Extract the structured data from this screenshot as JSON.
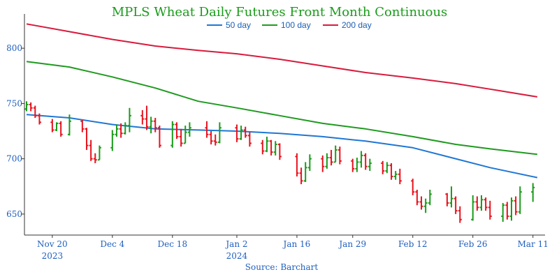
{
  "chart_data": {
    "type": "ohlc",
    "title": "MPLS Wheat Daily Futures Front Month Continuous",
    "source": "Source: Barchart",
    "ylim": [
      631,
      831
    ],
    "y_ticks": [
      650,
      700,
      750,
      800
    ],
    "x_ticks": [
      {
        "date": "2023-11-20",
        "label": "Nov 20",
        "sub": "2023"
      },
      {
        "date": "2023-12-04",
        "label": "Dec 4",
        "sub": ""
      },
      {
        "date": "2023-12-18",
        "label": "Dec 18",
        "sub": ""
      },
      {
        "date": "2024-01-02",
        "label": "Jan 2",
        "sub": "2024"
      },
      {
        "date": "2024-01-16",
        "label": "Jan 16",
        "sub": ""
      },
      {
        "date": "2024-01-29",
        "label": "Jan 29",
        "sub": ""
      },
      {
        "date": "2024-02-12",
        "label": "Feb 12",
        "sub": ""
      },
      {
        "date": "2024-02-26",
        "label": "Feb 26",
        "sub": ""
      },
      {
        "date": "2024-03-11",
        "label": "Mar 11",
        "sub": ""
      }
    ],
    "x_range": [
      "2023-11-14",
      "2024-03-13"
    ],
    "colors": {
      "up": "#1a9b1a",
      "down": "#e8131f",
      "axis": "#333333",
      "tick_text": "#1f5fbf"
    },
    "legend": {
      "position": "top-center"
    },
    "series": [
      {
        "name": "50 day",
        "color": "#1f77d4",
        "points": [
          [
            "2023-11-14",
            740
          ],
          [
            "2023-11-24",
            737
          ],
          [
            "2023-12-04",
            731
          ],
          [
            "2023-12-14",
            727
          ],
          [
            "2023-12-24",
            726
          ],
          [
            "2024-01-02",
            725
          ],
          [
            "2024-01-12",
            723
          ],
          [
            "2024-01-22",
            720
          ],
          [
            "2024-02-01",
            716
          ],
          [
            "2024-02-12",
            710
          ],
          [
            "2024-02-22",
            700
          ],
          [
            "2024-03-01",
            692
          ],
          [
            "2024-03-12",
            683
          ]
        ]
      },
      {
        "name": "100 day",
        "color": "#1f9a1f",
        "points": [
          [
            "2023-11-14",
            788
          ],
          [
            "2023-11-24",
            783
          ],
          [
            "2023-12-04",
            774
          ],
          [
            "2023-12-14",
            764
          ],
          [
            "2023-12-24",
            752
          ],
          [
            "2024-01-02",
            746
          ],
          [
            "2024-01-12",
            739
          ],
          [
            "2024-01-22",
            732
          ],
          [
            "2024-02-01",
            727
          ],
          [
            "2024-02-12",
            720
          ],
          [
            "2024-02-22",
            713
          ],
          [
            "2024-03-01",
            709
          ],
          [
            "2024-03-12",
            704
          ]
        ]
      },
      {
        "name": "200 day",
        "color": "#d81b3c",
        "points": [
          [
            "2023-11-14",
            822
          ],
          [
            "2023-11-24",
            815
          ],
          [
            "2023-12-04",
            808
          ],
          [
            "2023-12-14",
            802
          ],
          [
            "2023-12-24",
            798
          ],
          [
            "2024-01-02",
            795
          ],
          [
            "2024-01-12",
            790
          ],
          [
            "2024-01-22",
            784
          ],
          [
            "2024-02-01",
            778
          ],
          [
            "2024-02-12",
            773
          ],
          [
            "2024-02-22",
            768
          ],
          [
            "2024-03-01",
            763
          ],
          [
            "2024-03-12",
            756
          ]
        ]
      }
    ],
    "bars": [
      [
        "2023-11-14",
        745,
        752,
        743,
        749
      ],
      [
        "2023-11-15",
        749,
        751,
        743,
        746
      ],
      [
        "2023-11-16",
        746,
        748,
        737,
        739
      ],
      [
        "2023-11-17",
        739,
        741,
        731,
        733
      ],
      [
        "2023-11-20",
        733,
        736,
        724,
        726
      ],
      [
        "2023-11-21",
        726,
        733,
        725,
        732
      ],
      [
        "2023-11-22",
        732,
        734,
        720,
        722
      ],
      [
        "2023-11-24",
        722,
        740,
        721,
        734
      ],
      [
        "2023-11-27",
        734,
        735,
        724,
        727
      ],
      [
        "2023-11-28",
        727,
        728,
        708,
        712
      ],
      [
        "2023-11-29",
        712,
        717,
        698,
        700
      ],
      [
        "2023-11-30",
        700,
        705,
        696,
        699
      ],
      [
        "2023-12-01",
        699,
        712,
        699,
        710
      ],
      [
        "2023-12-04",
        710,
        726,
        707,
        722
      ],
      [
        "2023-12-05",
        722,
        731,
        720,
        727
      ],
      [
        "2023-12-06",
        727,
        732,
        719,
        723
      ],
      [
        "2023-12-07",
        723,
        733,
        722,
        730
      ],
      [
        "2023-12-08",
        730,
        746,
        724,
        739
      ],
      [
        "2023-12-11",
        739,
        744,
        731,
        736
      ],
      [
        "2023-12-12",
        736,
        748,
        726,
        729
      ],
      [
        "2023-12-13",
        729,
        738,
        723,
        734
      ],
      [
        "2023-12-14",
        734,
        737,
        724,
        728
      ],
      [
        "2023-12-15",
        728,
        730,
        710,
        712
      ],
      [
        "2023-12-18",
        712,
        734,
        710,
        731
      ],
      [
        "2023-12-19",
        731,
        733,
        718,
        720
      ],
      [
        "2023-12-20",
        720,
        727,
        711,
        714
      ],
      [
        "2023-12-21",
        714,
        730,
        714,
        724
      ],
      [
        "2023-12-22",
        724,
        733,
        720,
        728
      ],
      [
        "2023-12-26",
        728,
        734,
        719,
        722
      ],
      [
        "2023-12-27",
        722,
        725,
        713,
        716
      ],
      [
        "2023-12-28",
        716,
        722,
        712,
        715
      ],
      [
        "2023-12-29",
        715,
        733,
        714,
        728
      ],
      [
        "2024-01-02",
        728,
        731,
        715,
        718
      ],
      [
        "2024-01-03",
        718,
        730,
        717,
        726
      ],
      [
        "2024-01-04",
        726,
        729,
        719,
        721
      ],
      [
        "2024-01-05",
        721,
        724,
        711,
        714
      ],
      [
        "2024-01-08",
        714,
        717,
        704,
        707
      ],
      [
        "2024-01-09",
        707,
        720,
        706,
        716
      ],
      [
        "2024-01-10",
        716,
        717,
        703,
        706
      ],
      [
        "2024-01-11",
        706,
        716,
        703,
        713
      ],
      [
        "2024-01-12",
        713,
        714,
        699,
        702
      ],
      [
        "2024-01-16",
        702,
        705,
        684,
        687
      ],
      [
        "2024-01-17",
        687,
        692,
        677,
        680
      ],
      [
        "2024-01-18",
        680,
        697,
        679,
        692
      ],
      [
        "2024-01-19",
        692,
        704,
        689,
        700
      ],
      [
        "2024-01-22",
        700,
        703,
        688,
        693
      ],
      [
        "2024-01-23",
        693,
        705,
        691,
        701
      ],
      [
        "2024-01-24",
        701,
        708,
        694,
        697
      ],
      [
        "2024-01-25",
        697,
        712,
        697,
        708
      ],
      [
        "2024-01-26",
        708,
        711,
        695,
        698
      ],
      [
        "2024-01-29",
        698,
        700,
        688,
        691
      ],
      [
        "2024-01-30",
        691,
        701,
        688,
        697
      ],
      [
        "2024-01-31",
        697,
        707,
        692,
        703
      ],
      [
        "2024-02-01",
        703,
        705,
        690,
        693
      ],
      [
        "2024-02-02",
        693,
        700,
        689,
        696
      ],
      [
        "2024-02-05",
        696,
        698,
        686,
        689
      ],
      [
        "2024-02-06",
        689,
        697,
        687,
        694
      ],
      [
        "2024-02-07",
        694,
        696,
        681,
        684
      ],
      [
        "2024-02-08",
        684,
        689,
        681,
        686
      ],
      [
        "2024-02-09",
        686,
        691,
        677,
        680
      ],
      [
        "2024-02-12",
        680,
        682,
        667,
        670
      ],
      [
        "2024-02-13",
        670,
        672,
        658,
        661
      ],
      [
        "2024-02-14",
        661,
        666,
        654,
        657
      ],
      [
        "2024-02-15",
        657,
        664,
        651,
        660
      ],
      [
        "2024-02-16",
        660,
        672,
        658,
        668
      ],
      [
        "2024-02-20",
        668,
        669,
        657,
        660
      ],
      [
        "2024-02-21",
        660,
        675,
        656,
        664
      ],
      [
        "2024-02-22",
        664,
        666,
        650,
        653
      ],
      [
        "2024-02-23",
        653,
        657,
        642,
        645
      ],
      [
        "2024-02-26",
        645,
        667,
        644,
        661
      ],
      [
        "2024-02-27",
        661,
        666,
        653,
        656
      ],
      [
        "2024-02-28",
        656,
        667,
        653,
        663
      ],
      [
        "2024-02-29",
        663,
        665,
        653,
        656
      ],
      [
        "2024-03-01",
        656,
        662,
        645,
        648
      ],
      [
        "2024-03-04",
        648,
        660,
        643,
        658
      ],
      [
        "2024-03-05",
        658,
        661,
        645,
        648
      ],
      [
        "2024-03-06",
        648,
        665,
        644,
        662
      ],
      [
        "2024-03-07",
        662,
        666,
        649,
        652
      ],
      [
        "2024-03-08",
        652,
        675,
        650,
        670
      ],
      [
        "2024-03-11",
        670,
        678,
        661,
        674
      ]
    ]
  }
}
